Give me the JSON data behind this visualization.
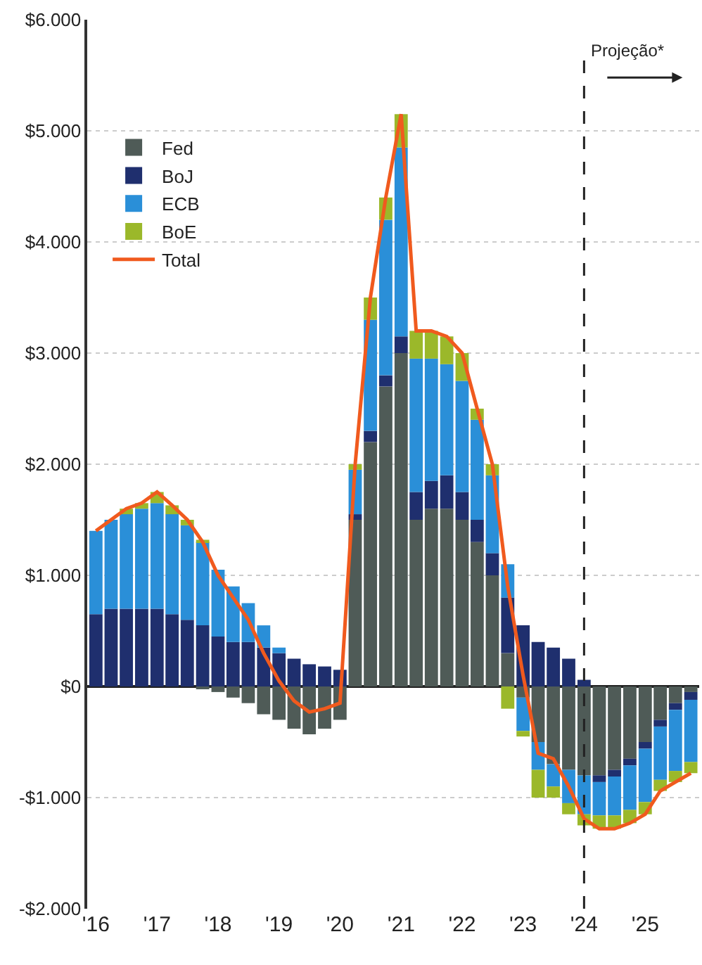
{
  "chart_data": {
    "type": "bar",
    "stacked": true,
    "x": [
      "2016-01",
      "2016-04",
      "2016-07",
      "2016-10",
      "2017-01",
      "2017-04",
      "2017-07",
      "2017-10",
      "2018-01",
      "2018-04",
      "2018-07",
      "2018-10",
      "2019-01",
      "2019-04",
      "2019-07",
      "2019-10",
      "2020-01",
      "2020-04",
      "2020-07",
      "2020-10",
      "2021-01",
      "2021-04",
      "2021-07",
      "2021-10",
      "2022-01",
      "2022-04",
      "2022-07",
      "2022-10",
      "2023-01",
      "2023-04",
      "2023-07",
      "2023-10",
      "2024-01",
      "2024-04",
      "2024-07",
      "2024-10",
      "2025-01",
      "2025-04",
      "2025-07",
      "2025-10"
    ],
    "series": [
      {
        "name": "Fed",
        "color": "#4f5b57",
        "values": [
          0,
          0,
          0,
          0,
          0,
          0,
          0,
          -20,
          -50,
          -100,
          -150,
          -250,
          -300,
          -380,
          -430,
          -380,
          -300,
          1500,
          2200,
          2700,
          3000,
          1500,
          1600,
          1600,
          1500,
          1300,
          1000,
          300,
          -100,
          -500,
          -700,
          -750,
          -800,
          -800,
          -750,
          -650,
          -500,
          -300,
          -150,
          -50
        ]
      },
      {
        "name": "BoJ",
        "color": "#1f2f6e",
        "values": [
          650,
          700,
          700,
          700,
          700,
          650,
          600,
          550,
          450,
          400,
          400,
          350,
          300,
          250,
          200,
          180,
          150,
          50,
          100,
          100,
          150,
          250,
          250,
          300,
          250,
          200,
          200,
          500,
          550,
          400,
          350,
          250,
          60,
          -60,
          -60,
          -60,
          -60,
          -60,
          -60,
          -70
        ]
      },
      {
        "name": "ECB",
        "color": "#2a8fd8",
        "values": [
          750,
          800,
          850,
          900,
          950,
          900,
          850,
          750,
          600,
          500,
          350,
          200,
          50,
          0,
          0,
          0,
          0,
          400,
          1000,
          1400,
          1700,
          1200,
          1100,
          1000,
          1000,
          900,
          700,
          300,
          -300,
          -250,
          -200,
          -300,
          -350,
          -300,
          -350,
          -400,
          -480,
          -480,
          -550,
          -560
        ]
      },
      {
        "name": "BoE",
        "color": "#9bb82a",
        "values": [
          0,
          0,
          50,
          50,
          100,
          80,
          50,
          20,
          0,
          0,
          0,
          0,
          0,
          0,
          0,
          0,
          0,
          50,
          200,
          200,
          300,
          250,
          250,
          250,
          250,
          100,
          100,
          -200,
          -50,
          -250,
          -100,
          -100,
          -100,
          -120,
          -120,
          -120,
          -110,
          -100,
          -100,
          -100
        ]
      },
      {
        "name": "Total",
        "type": "line",
        "color": "#f05a1e",
        "values": [
          1400,
          1500,
          1600,
          1650,
          1750,
          1630,
          1500,
          1300,
          1000,
          800,
          600,
          300,
          50,
          -130,
          -230,
          -200,
          -150,
          2000,
          3500,
          4400,
          5150,
          3200,
          3200,
          3150,
          3000,
          2500,
          2000,
          900,
          100,
          -600,
          -650,
          -900,
          -1190,
          -1280,
          -1280,
          -1230,
          -1150,
          -940,
          -860,
          -780
        ]
      }
    ],
    "xlim": [
      "2015-11-10",
      "2025-11-20"
    ],
    "xticks": [
      {
        "value": "2016-01-01",
        "label": "'16"
      },
      {
        "value": "2017-01-01",
        "label": "'17"
      },
      {
        "value": "2018-01-01",
        "label": "'18"
      },
      {
        "value": "2019-01-01",
        "label": "'19"
      },
      {
        "value": "2020-01-01",
        "label": "'20"
      },
      {
        "value": "2021-01-01",
        "label": "'21"
      },
      {
        "value": "2022-01-01",
        "label": "'22"
      },
      {
        "value": "2023-01-01",
        "label": "'23"
      },
      {
        "value": "2024-01-01",
        "label": "'24"
      },
      {
        "value": "2025-01-01",
        "label": "'25"
      }
    ],
    "ylim": [
      -2000,
      6000
    ],
    "yticks": [
      {
        "value": -2000,
        "label": "-$2.000"
      },
      {
        "value": -1000,
        "label": "-$1.000"
      },
      {
        "value": 0,
        "label": "$0"
      },
      {
        "value": 1000,
        "label": "$1.000"
      },
      {
        "value": 2000,
        "label": "$2.000"
      },
      {
        "value": 3000,
        "label": "$3.000"
      },
      {
        "value": 4000,
        "label": "$4.000"
      },
      {
        "value": 5000,
        "label": "$5.000"
      },
      {
        "value": 6000,
        "label": "$6.000"
      }
    ],
    "ref_lines": [
      {
        "axis": "x",
        "value": "2024-01-01",
        "label": "Projeção*",
        "color": "#222222",
        "line_style": "dashed"
      }
    ],
    "grid": "y",
    "legend": "top left"
  }
}
